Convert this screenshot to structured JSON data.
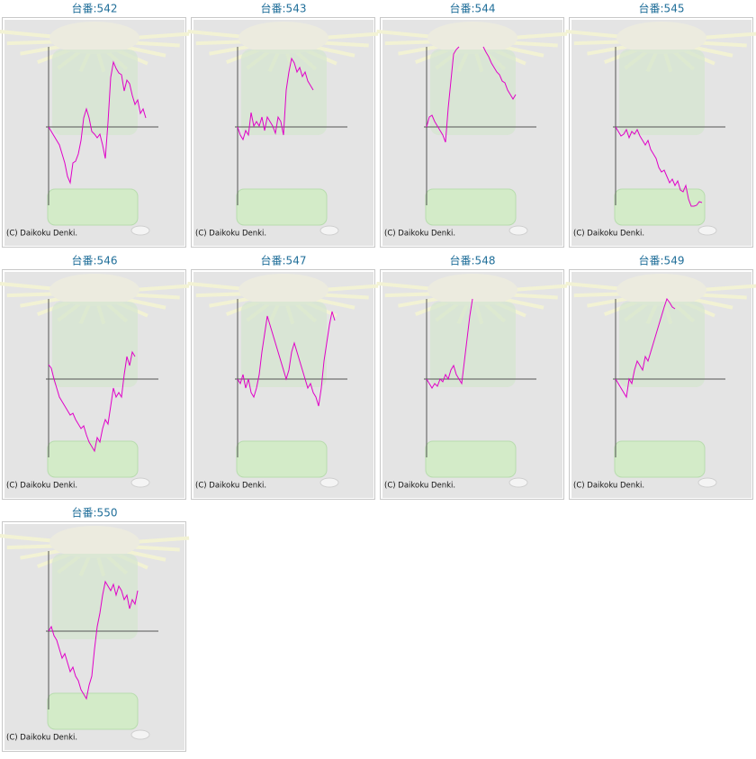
{
  "chart_data": [
    {
      "type": "line",
      "title": "台番:542",
      "annotation": "(C) Daikoku Denki.",
      "color": "#e000c8",
      "xlim": [
        0,
        40
      ],
      "ylim": [
        -90,
        90
      ],
      "values": [
        0,
        -5,
        -10,
        -15,
        -20,
        -30,
        -40,
        -55,
        -62,
        -40,
        -38,
        -30,
        -15,
        10,
        20,
        10,
        -5,
        -8,
        -12,
        -8,
        -20,
        -35,
        5,
        55,
        72,
        65,
        60,
        58,
        40,
        52,
        48,
        35,
        25,
        30,
        15,
        20,
        10
      ]
    },
    {
      "type": "line",
      "title": "台番:543",
      "annotation": "(C) Daikoku Denki.",
      "color": "#e000c8",
      "xlim": [
        0,
        40
      ],
      "ylim": [
        -90,
        90
      ],
      "values": [
        0,
        -9,
        -14,
        -4,
        -9,
        16,
        1,
        6,
        1,
        11,
        -4,
        11,
        6,
        1,
        -7,
        11,
        6,
        -9,
        41,
        61,
        76,
        71,
        61,
        66,
        56,
        61,
        51,
        46,
        41
      ]
    },
    {
      "type": "line",
      "title": "台番:544",
      "annotation": "(C) Daikoku Denki.",
      "color": "#e000c8",
      "xlim": [
        0,
        40
      ],
      "ylim": [
        -90,
        90
      ],
      "values": [
        0,
        11,
        13,
        6,
        1,
        -4,
        -9,
        -17,
        21,
        51,
        81,
        86,
        89,
        null,
        null,
        null,
        null,
        null,
        null,
        null,
        null,
        89,
        83,
        78,
        71,
        66,
        61,
        58,
        51,
        49,
        41,
        36,
        31,
        36
      ]
    },
    {
      "type": "line",
      "title": "台番:545",
      "annotation": "(C) Daikoku Denki.",
      "color": "#e000c8",
      "xlim": [
        0,
        40
      ],
      "ylim": [
        -90,
        90
      ],
      "values": [
        0,
        -5,
        -10,
        -8,
        -3,
        -12,
        -5,
        -8,
        -3,
        -10,
        -15,
        -20,
        -15,
        -25,
        -30,
        -35,
        -45,
        -50,
        -48,
        -55,
        -62,
        -58,
        -65,
        -60,
        -70,
        -72,
        -65,
        -80,
        -88,
        -88,
        -87,
        -83,
        -84
      ]
    },
    {
      "type": "line",
      "title": "台番:546",
      "annotation": "(C) Daikoku Denki.",
      "color": "#e000c8",
      "xlim": [
        0,
        40
      ],
      "ylim": [
        -90,
        90
      ],
      "values": [
        16,
        12,
        0,
        -10,
        -20,
        -25,
        -30,
        -35,
        -40,
        -38,
        -45,
        -50,
        -55,
        -52,
        -62,
        -70,
        -75,
        -80,
        -65,
        -70,
        -55,
        -45,
        -50,
        -30,
        -10,
        -20,
        -15,
        -20,
        5,
        25,
        15,
        30,
        25
      ]
    },
    {
      "type": "line",
      "title": "台番:547",
      "annotation": "(C) Daikoku Denki.",
      "color": "#e000c8",
      "xlim": [
        0,
        40
      ],
      "ylim": [
        -90,
        90
      ],
      "values": [
        0,
        -5,
        5,
        -10,
        0,
        -15,
        -20,
        -10,
        5,
        30,
        50,
        70,
        60,
        50,
        40,
        30,
        20,
        10,
        0,
        10,
        30,
        40,
        30,
        20,
        10,
        0,
        -10,
        -5,
        -15,
        -20,
        -30,
        -10,
        20,
        40,
        60,
        75,
        65
      ]
    },
    {
      "type": "line",
      "title": "台番:548",
      "annotation": "(C) Daikoku Denki.",
      "color": "#e000c8",
      "xlim": [
        0,
        40
      ],
      "ylim": [
        -90,
        90
      ],
      "values": [
        0,
        -5,
        -10,
        -5,
        -8,
        0,
        -3,
        5,
        0,
        10,
        15,
        5,
        0,
        -5,
        20,
        45,
        70,
        89
      ]
    },
    {
      "type": "line",
      "title": "台番:549",
      "annotation": "(C) Daikoku Denki.",
      "color": "#e000c8",
      "xlim": [
        0,
        40
      ],
      "ylim": [
        -90,
        90
      ],
      "values": [
        0,
        -5,
        -10,
        -15,
        -20,
        0,
        -5,
        10,
        20,
        15,
        10,
        25,
        20,
        30,
        40,
        50,
        60,
        70,
        80,
        89,
        85,
        80,
        78
      ]
    },
    {
      "type": "line",
      "title": "台番:550",
      "annotation": "(C) Daikoku Denki.",
      "color": "#e000c8",
      "xlim": [
        0,
        40
      ],
      "ylim": [
        -90,
        90
      ],
      "values": [
        0,
        5,
        -5,
        -10,
        -20,
        -30,
        -25,
        -35,
        -45,
        -40,
        -50,
        -55,
        -65,
        -70,
        -75,
        -60,
        -50,
        -20,
        5,
        20,
        40,
        55,
        50,
        45,
        52,
        40,
        50,
        45,
        35,
        40,
        25,
        35,
        30,
        45
      ]
    }
  ]
}
